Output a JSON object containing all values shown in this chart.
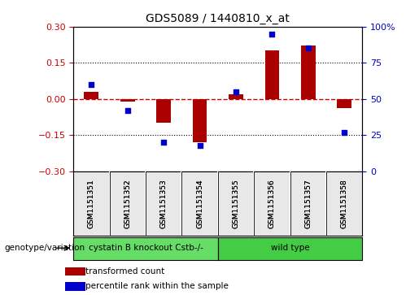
{
  "title": "GDS5089 / 1440810_x_at",
  "samples": [
    "GSM1151351",
    "GSM1151352",
    "GSM1151353",
    "GSM1151354",
    "GSM1151355",
    "GSM1151356",
    "GSM1151357",
    "GSM1151358"
  ],
  "bar_values": [
    0.03,
    -0.01,
    -0.1,
    -0.18,
    0.02,
    0.2,
    0.22,
    -0.04
  ],
  "scatter_values": [
    60,
    42,
    20,
    18,
    55,
    95,
    85,
    27
  ],
  "ylim_left": [
    -0.3,
    0.3
  ],
  "ylim_right": [
    0,
    100
  ],
  "yticks_left": [
    -0.3,
    -0.15,
    0.0,
    0.15,
    0.3
  ],
  "yticks_right": [
    0,
    25,
    50,
    75,
    100
  ],
  "bar_color": "#AA0000",
  "scatter_color": "#0000CC",
  "hline_color": "#CC0000",
  "hline_style": "--",
  "grid_color": "black",
  "grid_style": ":",
  "grid_values": [
    -0.15,
    0.15
  ],
  "group1_label": "cystatin B knockout Cstb-/-",
  "group2_label": "wild type",
  "group1_color": "#66DD66",
  "group2_color": "#44CC44",
  "group1_samples": 4,
  "group2_samples": 4,
  "genotype_label": "genotype/variation",
  "legend_bar_label": "transformed count",
  "legend_scatter_label": "percentile rank within the sample",
  "sample_bg_color": "#CCCCCC",
  "plot_bg": "#FFFFFF",
  "tick_label_color_left": "#CC0000",
  "tick_label_color_right": "#0000CC",
  "bar_width": 0.4
}
